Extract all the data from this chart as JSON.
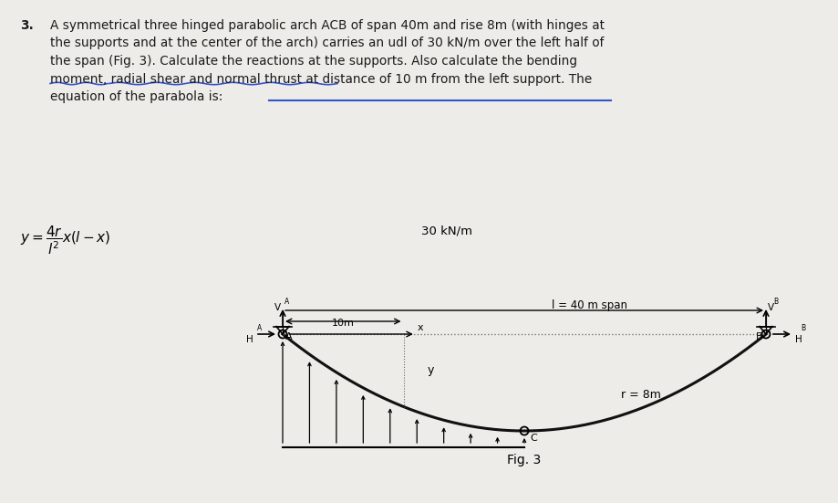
{
  "background_color": "#eeece8",
  "text_color": "#1a1a1a",
  "problem_number": "3.",
  "problem_text_lines": [
    "A symmetrical three hinged parabolic arch ACB of span 40m and rise 8m (with hinges at",
    "the supports and at the center of the arch) carries an udl of 30 kN/m over the left half of",
    "the span (Fig. 3). Calculate the reactions at the supports. Also calculate the bending",
    "moment, radial shear and normal thrust at distance of 10 m from the left support. The",
    "equation of the parabola is:"
  ],
  "udl_label": "30 kN/m",
  "rise_label": "r = 8m",
  "span_label": "l = 40 m span",
  "x_label": "x",
  "y_label": "y",
  "dist_label": "10m",
  "fig_label": "Fig. 3",
  "label_A": "A",
  "label_B": "B",
  "label_C": "C",
  "label_HA": "H",
  "label_HB": "H",
  "label_VA": "V",
  "label_VB": "V",
  "arch_color": "#111111",
  "arch_linewidth": 2.2,
  "span": 40,
  "rise": 8
}
